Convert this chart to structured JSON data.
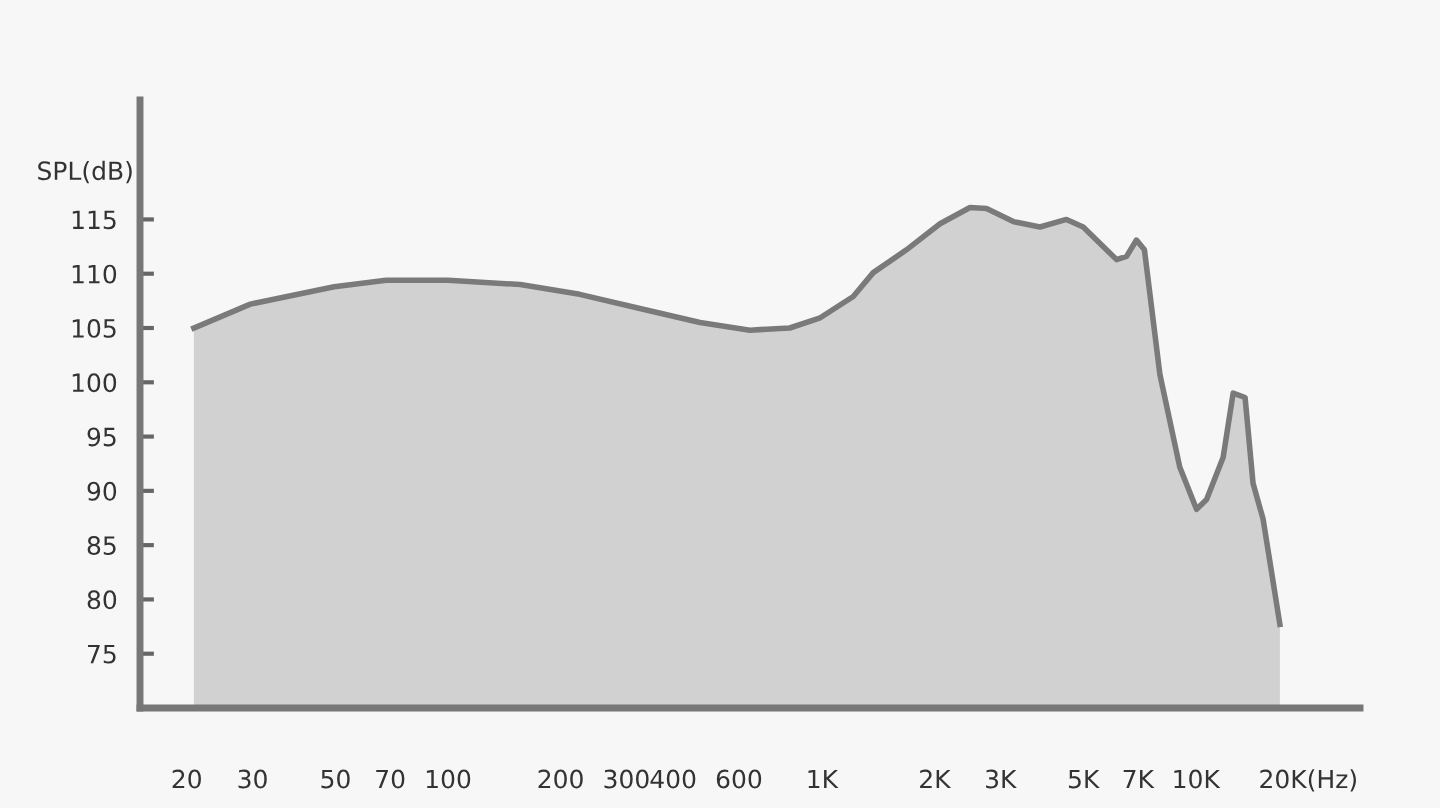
{
  "chart_data": {
    "type": "area",
    "ylabel": "SPL(dB)",
    "log": "x",
    "x": [
      20.9,
      29.6,
      49.6,
      68.3,
      100,
      156,
      225,
      326,
      472,
      642,
      820,
      985,
      1213,
      1372,
      1683,
      2070,
      2490,
      2757,
      3250,
      3830,
      4510,
      5000,
      6140,
      6530,
      6940,
      7290,
      8020,
      9060,
      10050,
      10690,
      11840,
      12590,
      13550,
      14230,
      15140,
      16790
    ],
    "series": [
      {
        "color": "#7a7a7a",
        "values": [
          105,
          107.2,
          108.8,
          109.4,
          109.4,
          109,
          108.1,
          106.8,
          105.5,
          104.8,
          105,
          105.9,
          107.9,
          110.1,
          112.2,
          114.6,
          116.1,
          116,
          114.8,
          114.3,
          115,
          114.3,
          111.3,
          111.6,
          113.1,
          112.2,
          100.7,
          92.2,
          88.3,
          89.2,
          93.1,
          99,
          98.6,
          90.7,
          87.4,
          77.7
        ]
      }
    ],
    "xlim": [
      15,
      27500
    ],
    "ylim": [
      70,
      126
    ],
    "xticks": [
      20,
      30,
      50,
      70,
      100,
      200,
      300,
      400,
      600,
      {
        "value": 1000,
        "label": "1K"
      },
      {
        "value": 2000,
        "label": "2K"
      },
      {
        "value": 3000,
        "label": "3K"
      },
      {
        "value": 5000,
        "label": "5K"
      },
      {
        "value": 7000,
        "label": "7K"
      },
      {
        "value": 10000,
        "label": "10K"
      },
      {
        "value": 20000,
        "label": "20K(Hz)"
      }
    ],
    "yticks": [
      75,
      80,
      85,
      90,
      95,
      100,
      105,
      110,
      115
    ],
    "grid": false
  }
}
